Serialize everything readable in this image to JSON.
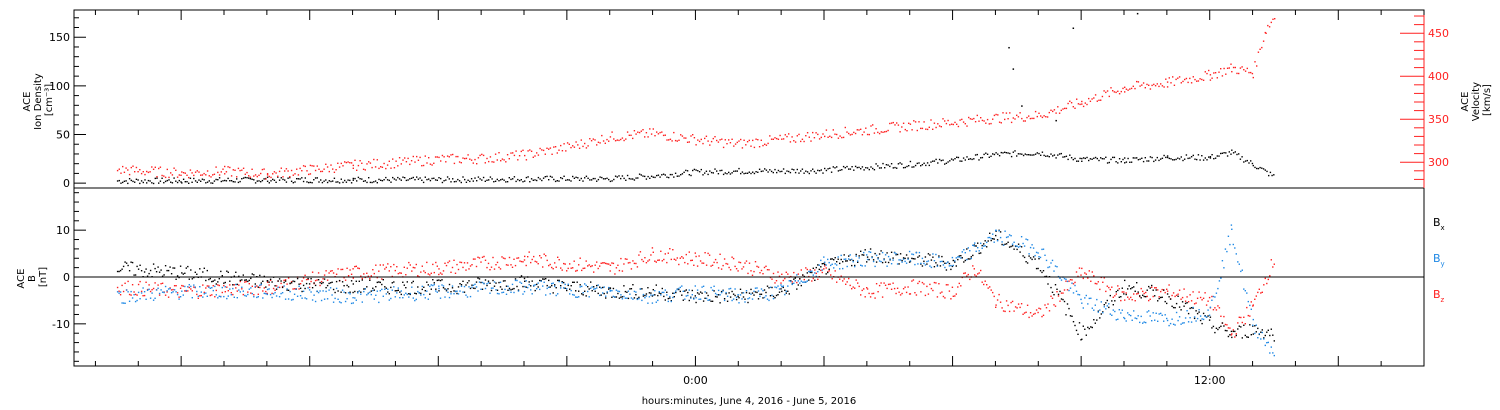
{
  "chart_data": [
    {
      "type": "scatter",
      "panel": "top",
      "ylabel_lines": [
        "ACE",
        "Ion Density",
        "[cm⁻³]"
      ],
      "y2label_lines": [
        "ACE",
        "Velocity",
        "[km/s]"
      ],
      "ylim": [
        -5,
        178
      ],
      "y2lim": [
        270,
        477
      ],
      "y_ticks": [
        0,
        50,
        100,
        150
      ],
      "y2_ticks": [
        300,
        350,
        400,
        450
      ],
      "series": [
        {
          "axis": "left",
          "color": "#000000",
          "x": [
            -13.5,
            -12,
            -10,
            -8,
            -6,
            -4,
            -2,
            -1,
            0,
            1,
            2,
            3,
            4,
            5,
            6,
            7,
            8,
            9,
            10,
            11,
            12,
            12.5,
            13,
            13.5
          ],
          "y": [
            3,
            3,
            4,
            4,
            4,
            5,
            5,
            8,
            12,
            13,
            13,
            14,
            17,
            20,
            24,
            30,
            32,
            25,
            24,
            27,
            27,
            32,
            20,
            7
          ]
        },
        {
          "axis": "right",
          "color": "#ff2020",
          "x": [
            -13.5,
            -12,
            -11,
            -10,
            -9,
            -8,
            -7,
            -6,
            -5,
            -4,
            -3,
            -2,
            -1,
            0,
            1,
            2,
            3,
            4,
            5,
            6,
            7,
            8,
            9,
            10,
            11,
            12,
            12.5,
            13,
            13.3,
            13.5
          ],
          "y": [
            292,
            288,
            290,
            287,
            292,
            297,
            300,
            304,
            305,
            309,
            318,
            330,
            334,
            327,
            322,
            327,
            333,
            338,
            343,
            347,
            352,
            355,
            370,
            387,
            393,
            402,
            410,
            405,
            455,
            470
          ]
        }
      ],
      "sparse_points": [
        {
          "x": 7.3,
          "y": 140
        },
        {
          "x": 7.4,
          "y": 118
        },
        {
          "x": 8.8,
          "y": 160
        },
        {
          "x": 10.3,
          "y": 175
        },
        {
          "x": 7.6,
          "y": 80
        },
        {
          "x": 8.4,
          "y": 65
        }
      ]
    },
    {
      "type": "scatter",
      "panel": "bottom",
      "ylabel_lines": [
        "ACE",
        "B",
        "[nT]"
      ],
      "ylim": [
        -19,
        19
      ],
      "y_ticks": [
        -10,
        0,
        10
      ],
      "zero_line": true,
      "xlabel": "hours:minutes, June  4, 2016 - June  5, 2016",
      "xlim": [
        -14.5,
        17
      ],
      "x_ticks": [
        0,
        12
      ],
      "x_tick_labels": [
        "0:00",
        "12:00"
      ],
      "series": [
        {
          "name": "Bx",
          "color": "#000000",
          "x": [
            -13.5,
            -12,
            -10,
            -8,
            -6,
            -4,
            -2,
            -1,
            0,
            1,
            2,
            3,
            4,
            5,
            6,
            6.5,
            7,
            8,
            9,
            10,
            11,
            12,
            12.5,
            13,
            13.5
          ],
          "y": [
            2,
            1,
            -1,
            -2,
            -2,
            -1,
            -3,
            -3,
            -4,
            -4,
            -3,
            2,
            5,
            4,
            3,
            6,
            9,
            3,
            -12,
            -2,
            -4,
            -10,
            -12,
            -11,
            -12
          ]
        },
        {
          "name": "By",
          "color": "#1e88e5",
          "x": [
            -13.5,
            -12,
            -10,
            -8,
            -6,
            -4,
            -2,
            -1,
            0,
            1,
            2,
            3,
            4,
            5,
            6,
            6.5,
            7,
            8,
            9,
            10,
            11,
            12,
            12.5,
            13,
            13.5
          ],
          "y": [
            -4,
            -3,
            -3,
            -4,
            -3,
            -2,
            -3,
            -4,
            -3,
            -4,
            -3,
            3,
            4,
            4,
            3,
            6,
            9,
            6,
            -5,
            -8,
            -9,
            -7,
            10,
            -10,
            -16
          ]
        },
        {
          "name": "Bz",
          "color": "#ff2020",
          "x": [
            -13.5,
            -12,
            -10,
            -8,
            -6,
            -4,
            -2,
            -1,
            0,
            1,
            2,
            3,
            4,
            5,
            6,
            6.5,
            7,
            8,
            9,
            10,
            11,
            12,
            12.5,
            13,
            13.5
          ],
          "y": [
            -2,
            -3,
            -2,
            1,
            2,
            4,
            2,
            5,
            4,
            3,
            0,
            1,
            -3,
            -2,
            -3,
            2,
            -5,
            -8,
            1,
            -4,
            -3,
            -5,
            -12,
            -6,
            4
          ]
        }
      ],
      "legend": [
        "B",
        "B",
        "B"
      ],
      "legend_subscripts": [
        "x",
        "y",
        "z"
      ]
    }
  ]
}
